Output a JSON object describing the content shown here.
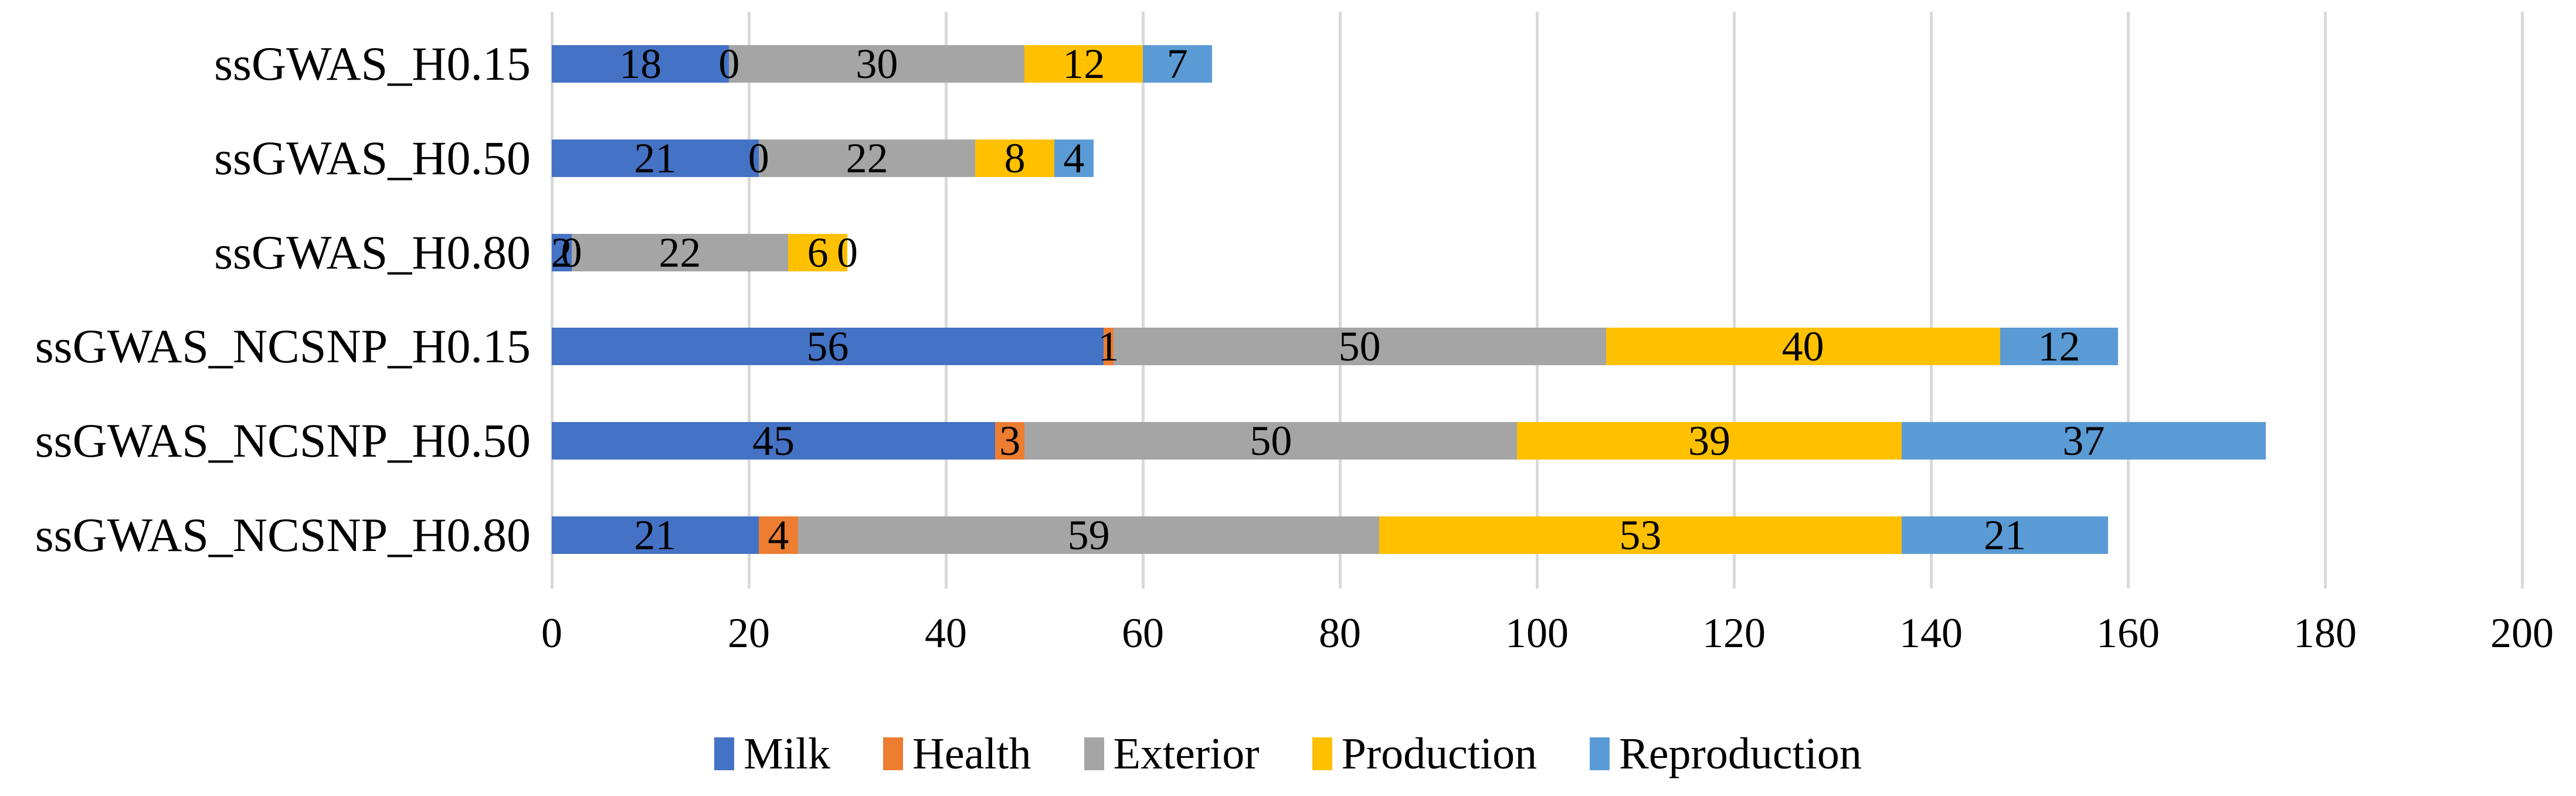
{
  "chart_data": {
    "type": "bar",
    "orientation": "horizontal",
    "stacked": true,
    "title": "",
    "xlabel": "",
    "ylabel": "",
    "categories": [
      "ssGWAS_H0.15",
      "ssGWAS_H0.50",
      "ssGWAS_H0.80",
      "ssGWAS_NCSNP_H0.15",
      "ssGWAS_NCSNP_H0.50",
      "ssGWAS_NCSNP_H0.80"
    ],
    "series": [
      {
        "name": "Milk",
        "color": "#4472C4",
        "values": [
          18,
          21,
          2,
          56,
          45,
          21
        ]
      },
      {
        "name": "Health",
        "color": "#ED7D31",
        "values": [
          0,
          0,
          0,
          1,
          3,
          4
        ]
      },
      {
        "name": "Exterior",
        "color": "#A5A5A5",
        "values": [
          30,
          22,
          22,
          50,
          50,
          59
        ]
      },
      {
        "name": "Production",
        "color": "#FFC000",
        "values": [
          12,
          8,
          6,
          40,
          39,
          53
        ]
      },
      {
        "name": "Reproduction",
        "color": "#5B9BD5",
        "values": [
          7,
          4,
          0,
          12,
          37,
          21
        ]
      }
    ],
    "x_ticks": [
      0,
      20,
      40,
      60,
      80,
      100,
      120,
      140,
      160,
      180,
      200
    ],
    "xlim": [
      0,
      200
    ],
    "grid": true,
    "gridline_color": "#D9D9D9",
    "data_labels": true,
    "label_color": "#000000",
    "background": "#FFFFFF",
    "legend_position": "bottom"
  }
}
